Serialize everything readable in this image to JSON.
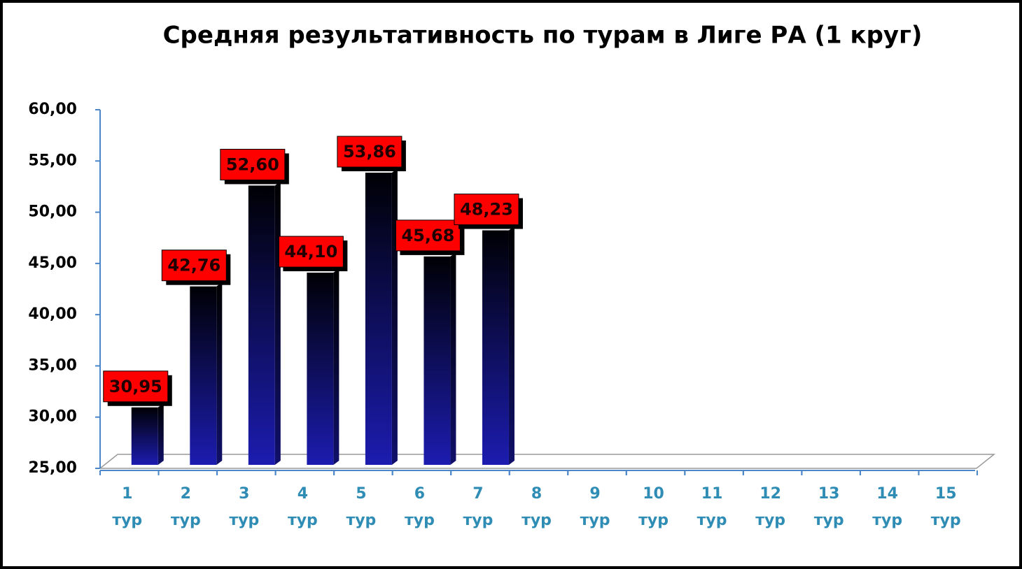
{
  "chart_data": {
    "type": "bar",
    "title": "Средняя результативность по турам в Лиге РА (1 круг)",
    "categories": [
      "1 тур",
      "2 тур",
      "3 тур",
      "4 тур",
      "5 тур",
      "6 тур",
      "7 тур",
      "8 тур",
      "9 тур",
      "10 тур",
      "11 тур",
      "12 тур",
      "13 тур",
      "14 тур",
      "15 тур"
    ],
    "values": [
      30.95,
      42.76,
      52.6,
      44.1,
      53.86,
      45.68,
      48.23,
      null,
      null,
      null,
      null,
      null,
      null,
      null,
      null
    ],
    "value_labels": [
      "30,95",
      "42,76",
      "52,60",
      "44,10",
      "53,86",
      "45,68",
      "48,23",
      null,
      null,
      null,
      null,
      null,
      null,
      null,
      null
    ],
    "ylim": [
      25,
      60
    ],
    "yticks": [
      {
        "value": 25,
        "label": "25,00"
      },
      {
        "value": 30,
        "label": "30,00"
      },
      {
        "value": 35,
        "label": "35,00"
      },
      {
        "value": 40,
        "label": "40,00"
      },
      {
        "value": 45,
        "label": "45,00"
      },
      {
        "value": 50,
        "label": "50,00"
      },
      {
        "value": 55,
        "label": "55,00"
      },
      {
        "value": 60,
        "label": "60,00"
      }
    ],
    "color": "#1c1cb0",
    "label_color": "#ff0000"
  }
}
